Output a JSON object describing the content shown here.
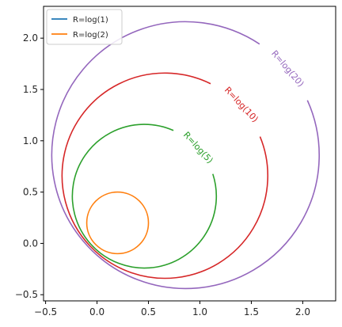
{
  "chart_data": {
    "type": "line",
    "title": "",
    "xlabel": "",
    "ylabel": "",
    "xlim": [
      -0.52,
      2.32
    ],
    "ylim": [
      -0.56,
      2.31
    ],
    "xticks": [
      -0.5,
      0.0,
      0.5,
      1.0,
      1.5,
      2.0
    ],
    "yticks": [
      -0.5,
      0.0,
      0.5,
      1.0,
      1.5,
      2.0
    ],
    "xtick_labels": [
      "−0.5",
      "0.0",
      "0.5",
      "1.0",
      "1.5",
      "2.0"
    ],
    "ytick_labels": [
      "−0.5",
      "0.0",
      "0.5",
      "1.0",
      "1.5",
      "2.0"
    ],
    "grid": false,
    "legend": {
      "placement": "top-left",
      "entries": [
        "R=log(1)",
        "R=log(2)"
      ]
    },
    "series": [
      {
        "name": "R=log(1)",
        "color": "#1f77b4",
        "center": [
          0.0,
          0.0
        ],
        "radius": 0.0,
        "inline_label": "",
        "gap_at": null
      },
      {
        "name": "R=log(2)",
        "color": "#ff7f0e",
        "center": [
          0.2,
          0.2
        ],
        "radius": 0.3,
        "inline_label": "",
        "gap_at": null
      },
      {
        "name": "R=log(5)",
        "color": "#2ca02c",
        "center": [
          0.46,
          0.46
        ],
        "radius": 0.7,
        "inline_label": "R=log(5)",
        "gap_at": [
          0.98,
          0.93
        ]
      },
      {
        "name": "R=log(10)",
        "color": "#d62728",
        "center": [
          0.66,
          0.66
        ],
        "radius": 1.0,
        "inline_label": "R=log(10)",
        "gap_at": [
          1.4,
          1.35
        ]
      },
      {
        "name": "R=log(20)",
        "color": "#9467bd",
        "center": [
          0.86,
          0.86
        ],
        "radius": 1.3,
        "inline_label": "R=log(20)",
        "gap_at": [
          1.85,
          1.7
        ]
      }
    ]
  }
}
